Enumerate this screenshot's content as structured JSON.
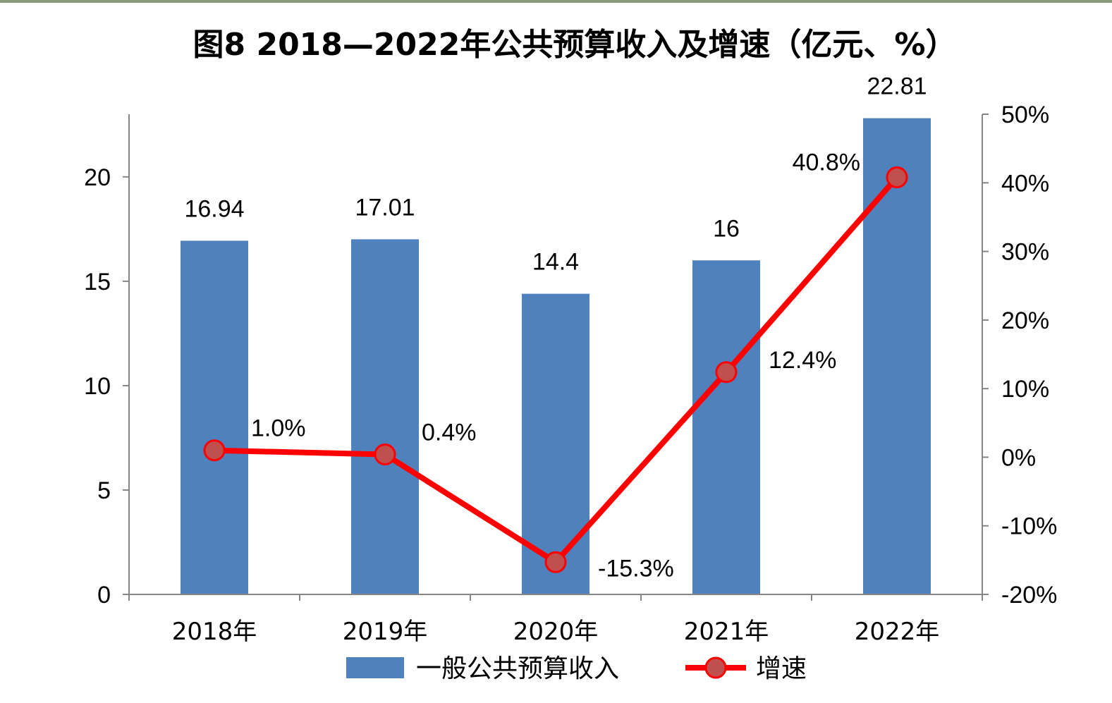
{
  "chart_data": {
    "type": "bar",
    "title": "图8  2018—2022年公共预算收入及增速（亿元、%）",
    "categories": [
      "2018年",
      "2019年",
      "2020年",
      "2021年",
      "2022年"
    ],
    "series": [
      {
        "name": "一般公共预算收入",
        "type": "bar",
        "axis": "left",
        "values": [
          16.94,
          17.01,
          14.4,
          16,
          22.81
        ],
        "labels": [
          "16.94",
          "17.01",
          "14.4",
          "16",
          "22.81"
        ],
        "color": "#4f81bd"
      },
      {
        "name": "增速",
        "type": "line",
        "axis": "right",
        "values": [
          1.0,
          0.4,
          -15.3,
          12.4,
          40.8
        ],
        "labels": [
          "1.0%",
          "0.4%",
          "-15.3%",
          "12.4%",
          "40.8%"
        ],
        "color": "#ff0000",
        "marker_color": "#c0504d"
      }
    ],
    "y_left": {
      "ylim": [
        0,
        23
      ],
      "ticks": [
        0,
        5,
        10,
        15,
        20
      ],
      "tick_labels": [
        "0",
        "5",
        "10",
        "15",
        "20"
      ]
    },
    "y_right": {
      "ylim": [
        -20,
        50
      ],
      "ticks": [
        -20,
        -10,
        0,
        10,
        20,
        30,
        40,
        50
      ],
      "tick_labels": [
        "-20%",
        "-10%",
        "0%",
        "10%",
        "20%",
        "30%",
        "40%",
        "50%"
      ]
    },
    "grid": false,
    "legend_position": "bottom"
  }
}
